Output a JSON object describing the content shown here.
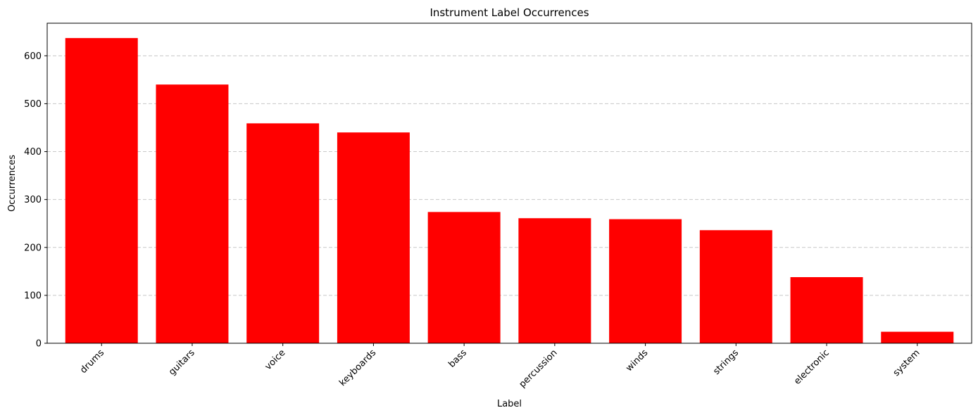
{
  "chart_data": {
    "type": "bar",
    "title": "Instrument Label Occurrences",
    "xlabel": "Label",
    "ylabel": "Occurrences",
    "categories": [
      "drums",
      "guitars",
      "voice",
      "keyboards",
      "bass",
      "percussion",
      "winds",
      "strings",
      "electronic",
      "system"
    ],
    "values": [
      637,
      540,
      459,
      440,
      274,
      261,
      259,
      236,
      138,
      24
    ],
    "ylim": [
      0,
      668
    ],
    "yticks": [
      0,
      100,
      200,
      300,
      400,
      500,
      600
    ],
    "grid": "y-dashed",
    "bar_color": "#ff0000",
    "legend": "none"
  }
}
